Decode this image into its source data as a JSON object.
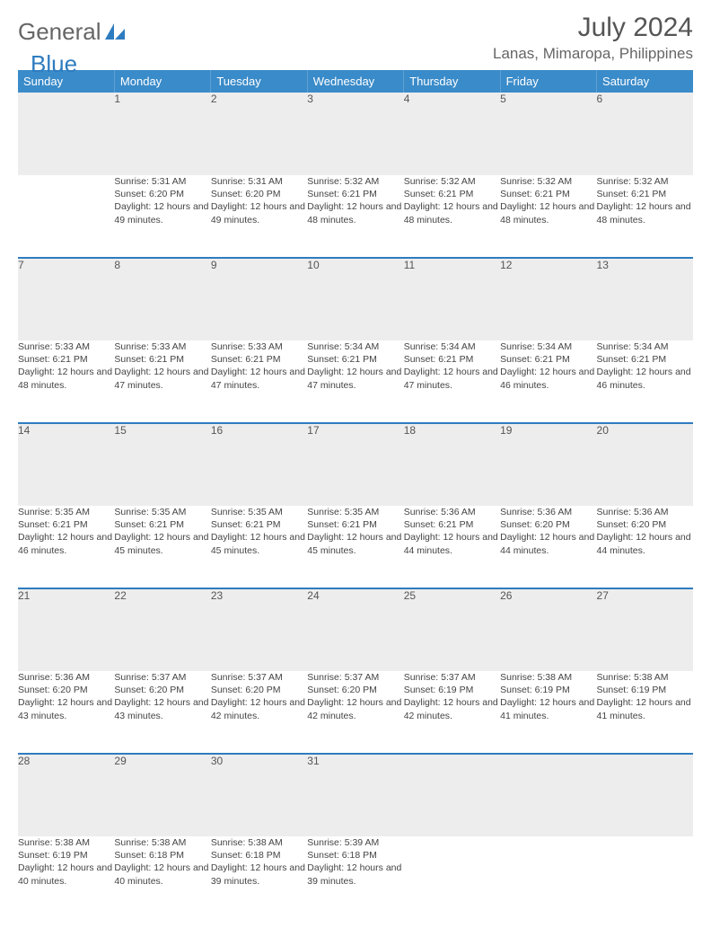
{
  "brand": {
    "word1": "General",
    "word2": "Blue"
  },
  "title": "July 2024",
  "location": "Lanas, Mimaropa, Philippines",
  "colors": {
    "header": "#3a8bc9",
    "accent": "#2e7cc0",
    "daynum_bg": "#ededed",
    "text": "#444",
    "title": "#555"
  },
  "weekdays": [
    "Sunday",
    "Monday",
    "Tuesday",
    "Wednesday",
    "Thursday",
    "Friday",
    "Saturday"
  ],
  "weeks": [
    [
      null,
      {
        "n": "1",
        "sr": "5:31 AM",
        "ss": "6:20 PM",
        "dl": "12 hours and 49 minutes."
      },
      {
        "n": "2",
        "sr": "5:31 AM",
        "ss": "6:20 PM",
        "dl": "12 hours and 49 minutes."
      },
      {
        "n": "3",
        "sr": "5:32 AM",
        "ss": "6:21 PM",
        "dl": "12 hours and 48 minutes."
      },
      {
        "n": "4",
        "sr": "5:32 AM",
        "ss": "6:21 PM",
        "dl": "12 hours and 48 minutes."
      },
      {
        "n": "5",
        "sr": "5:32 AM",
        "ss": "6:21 PM",
        "dl": "12 hours and 48 minutes."
      },
      {
        "n": "6",
        "sr": "5:32 AM",
        "ss": "6:21 PM",
        "dl": "12 hours and 48 minutes."
      }
    ],
    [
      {
        "n": "7",
        "sr": "5:33 AM",
        "ss": "6:21 PM",
        "dl": "12 hours and 48 minutes."
      },
      {
        "n": "8",
        "sr": "5:33 AM",
        "ss": "6:21 PM",
        "dl": "12 hours and 47 minutes."
      },
      {
        "n": "9",
        "sr": "5:33 AM",
        "ss": "6:21 PM",
        "dl": "12 hours and 47 minutes."
      },
      {
        "n": "10",
        "sr": "5:34 AM",
        "ss": "6:21 PM",
        "dl": "12 hours and 47 minutes."
      },
      {
        "n": "11",
        "sr": "5:34 AM",
        "ss": "6:21 PM",
        "dl": "12 hours and 47 minutes."
      },
      {
        "n": "12",
        "sr": "5:34 AM",
        "ss": "6:21 PM",
        "dl": "12 hours and 46 minutes."
      },
      {
        "n": "13",
        "sr": "5:34 AM",
        "ss": "6:21 PM",
        "dl": "12 hours and 46 minutes."
      }
    ],
    [
      {
        "n": "14",
        "sr": "5:35 AM",
        "ss": "6:21 PM",
        "dl": "12 hours and 46 minutes."
      },
      {
        "n": "15",
        "sr": "5:35 AM",
        "ss": "6:21 PM",
        "dl": "12 hours and 45 minutes."
      },
      {
        "n": "16",
        "sr": "5:35 AM",
        "ss": "6:21 PM",
        "dl": "12 hours and 45 minutes."
      },
      {
        "n": "17",
        "sr": "5:35 AM",
        "ss": "6:21 PM",
        "dl": "12 hours and 45 minutes."
      },
      {
        "n": "18",
        "sr": "5:36 AM",
        "ss": "6:21 PM",
        "dl": "12 hours and 44 minutes."
      },
      {
        "n": "19",
        "sr": "5:36 AM",
        "ss": "6:20 PM",
        "dl": "12 hours and 44 minutes."
      },
      {
        "n": "20",
        "sr": "5:36 AM",
        "ss": "6:20 PM",
        "dl": "12 hours and 44 minutes."
      }
    ],
    [
      {
        "n": "21",
        "sr": "5:36 AM",
        "ss": "6:20 PM",
        "dl": "12 hours and 43 minutes."
      },
      {
        "n": "22",
        "sr": "5:37 AM",
        "ss": "6:20 PM",
        "dl": "12 hours and 43 minutes."
      },
      {
        "n": "23",
        "sr": "5:37 AM",
        "ss": "6:20 PM",
        "dl": "12 hours and 42 minutes."
      },
      {
        "n": "24",
        "sr": "5:37 AM",
        "ss": "6:20 PM",
        "dl": "12 hours and 42 minutes."
      },
      {
        "n": "25",
        "sr": "5:37 AM",
        "ss": "6:19 PM",
        "dl": "12 hours and 42 minutes."
      },
      {
        "n": "26",
        "sr": "5:38 AM",
        "ss": "6:19 PM",
        "dl": "12 hours and 41 minutes."
      },
      {
        "n": "27",
        "sr": "5:38 AM",
        "ss": "6:19 PM",
        "dl": "12 hours and 41 minutes."
      }
    ],
    [
      {
        "n": "28",
        "sr": "5:38 AM",
        "ss": "6:19 PM",
        "dl": "12 hours and 40 minutes."
      },
      {
        "n": "29",
        "sr": "5:38 AM",
        "ss": "6:18 PM",
        "dl": "12 hours and 40 minutes."
      },
      {
        "n": "30",
        "sr": "5:38 AM",
        "ss": "6:18 PM",
        "dl": "12 hours and 39 minutes."
      },
      {
        "n": "31",
        "sr": "5:39 AM",
        "ss": "6:18 PM",
        "dl": "12 hours and 39 minutes."
      },
      null,
      null,
      null
    ]
  ],
  "labels": {
    "sunrise": "Sunrise: ",
    "sunset": "Sunset: ",
    "daylight": "Daylight: "
  }
}
